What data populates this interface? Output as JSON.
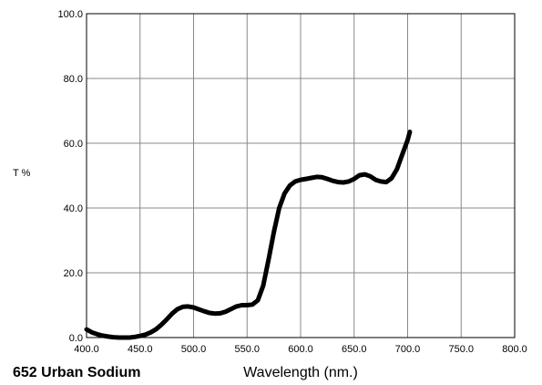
{
  "chart_data": {
    "type": "line",
    "title": "652 Urban Sodium",
    "xlabel": "Wavelength (nm.)",
    "ylabel": "T %",
    "xlim": [
      400,
      800
    ],
    "ylim": [
      0,
      100
    ],
    "grid": true,
    "x_ticks": [
      "400.0",
      "450.0",
      "500.0",
      "550.0",
      "600.0",
      "650.0",
      "700.0",
      "750.0",
      "800.0"
    ],
    "y_ticks": [
      "0.0",
      "20.0",
      "40.0",
      "60.0",
      "80.0",
      "100.0"
    ],
    "series": [
      {
        "color": "#000000",
        "x": [
          400,
          405,
          410,
          415,
          420,
          425,
          430,
          435,
          440,
          445,
          450,
          455,
          460,
          465,
          470,
          475,
          480,
          485,
          490,
          495,
          500,
          505,
          510,
          515,
          520,
          525,
          530,
          535,
          540,
          545,
          550,
          555,
          560,
          565,
          570,
          575,
          580,
          585,
          590,
          595,
          600,
          605,
          610,
          615,
          620,
          625,
          630,
          635,
          640,
          645,
          650,
          655,
          660,
          665,
          670,
          675,
          680,
          685,
          690,
          695,
          700,
          702
        ],
        "y": [
          2.5,
          1.6,
          1.0,
          0.6,
          0.3,
          0.1,
          0.0,
          0.0,
          0.0,
          0.2,
          0.5,
          0.9,
          1.6,
          2.6,
          4.0,
          5.6,
          7.4,
          8.8,
          9.5,
          9.6,
          9.3,
          8.7,
          8.1,
          7.6,
          7.4,
          7.5,
          8.0,
          8.8,
          9.6,
          10.0,
          10.0,
          10.2,
          11.5,
          16.0,
          24.0,
          32.5,
          40.0,
          44.5,
          47.0,
          48.2,
          48.7,
          49.0,
          49.3,
          49.6,
          49.5,
          49.0,
          48.4,
          48.0,
          47.9,
          48.2,
          49.0,
          50.1,
          50.4,
          49.8,
          48.7,
          48.2,
          48.0,
          49.2,
          52.0,
          56.5,
          61.0,
          63.5
        ]
      }
    ]
  }
}
